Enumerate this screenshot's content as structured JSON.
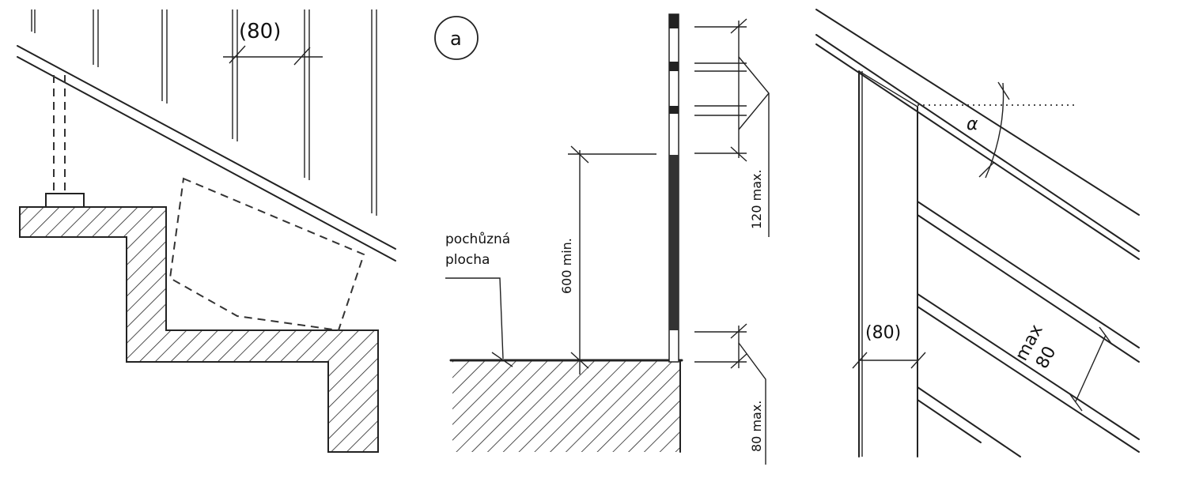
{
  "figure": {
    "panel_left": {
      "spacing_label": "(80)"
    },
    "panel_middle": {
      "panel_label": "a",
      "walking_surface_label_line1": "pochůzná",
      "walking_surface_label_line2": "plocha",
      "height_label": "600 min.",
      "top_gap_label": "120 max.",
      "bottom_gap_label": "80 max."
    },
    "panel_right": {
      "angle_label": "α",
      "spacing_label": "(80)",
      "max_label_line1": "max",
      "max_label_line2": "80"
    },
    "colors": {
      "ink": "#222222",
      "background": "#ffffff"
    }
  }
}
